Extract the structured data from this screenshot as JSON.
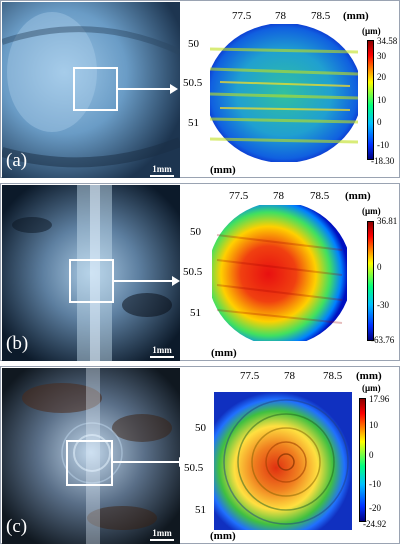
{
  "panels": [
    {
      "id": "a",
      "label": "(a)",
      "scale_bar": "1mm",
      "x_ticks": [
        "77.5",
        "78",
        "78.5"
      ],
      "y_ticks": [
        "50",
        "50.5",
        "51"
      ],
      "x_unit": "(mm)",
      "y_unit": "(mm)",
      "cbar_unit": "(μm)",
      "cbar_labels": [
        "34.58",
        "30",
        "20",
        "10",
        "0",
        "-10",
        "-18.30"
      ]
    },
    {
      "id": "b",
      "label": "(b)",
      "scale_bar": "1mm",
      "x_ticks": [
        "77.5",
        "78",
        "78.5"
      ],
      "y_ticks": [
        "50",
        "50.5",
        "51"
      ],
      "x_unit": "(mm)",
      "y_unit": "(mm)",
      "cbar_unit": "(μm)",
      "cbar_labels": [
        "36.81",
        "0",
        "-30",
        "-63.76"
      ]
    },
    {
      "id": "c",
      "label": "(c)",
      "scale_bar": "1mm",
      "x_ticks": [
        "77.5",
        "78",
        "78.5"
      ],
      "y_ticks": [
        "50",
        "50.5",
        "51"
      ],
      "x_unit": "(mm)",
      "y_unit": "(mm)",
      "cbar_unit": "(μm)",
      "cbar_labels": [
        "17.96",
        "10",
        "0",
        "-10",
        "-20",
        "-24.92"
      ]
    }
  ],
  "colors": {
    "map_low": "#0000c8",
    "map_mid": "#00c8c8",
    "map_midhigh": "#ffff00",
    "map_high": "#e00000"
  }
}
